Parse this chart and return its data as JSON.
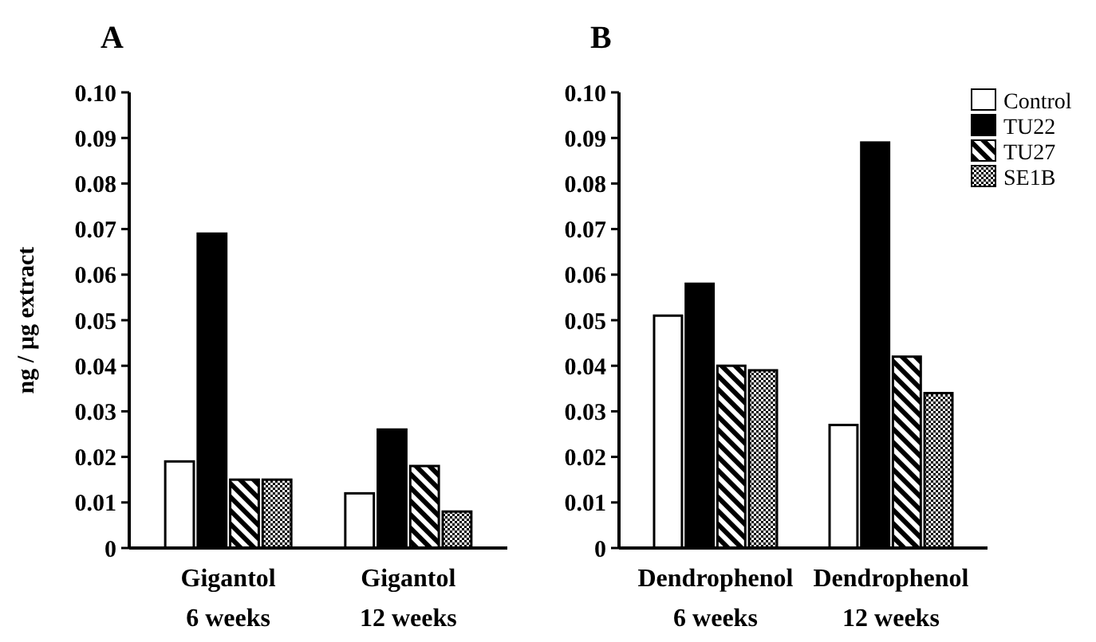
{
  "chart_data": [
    {
      "type": "bar",
      "title": "A",
      "ylabel": "ng / µg extract",
      "categories": [
        "Gigantol\n6 weeks",
        "Gigantol\n12 weeks"
      ],
      "series": [
        {
          "color": "#ffffff",
          "values": [
            0.019,
            0.012
          ]
        },
        {
          "color": "#000000",
          "values": [
            0.069,
            0.026
          ]
        },
        {
          "color": "#000000",
          "values": [
            0.015,
            0.018
          ]
        },
        {
          "color": "#000000",
          "values": [
            0.015,
            0.008
          ]
        }
      ],
      "ylim": [
        0,
        0.1
      ],
      "yticks": [
        0,
        {
          "value": 0.01,
          "label": "0.01"
        },
        {
          "value": 0.02,
          "label": "0.02"
        },
        {
          "value": 0.03,
          "label": "0.03"
        },
        {
          "value": 0.04,
          "label": "0.04"
        },
        {
          "value": 0.05,
          "label": "0.05"
        },
        {
          "value": 0.06,
          "label": "0.06"
        },
        {
          "value": 0.07,
          "label": "0.07"
        },
        {
          "value": 0.08,
          "label": "0.08"
        },
        {
          "value": 0.09,
          "label": "0.09"
        },
        {
          "value": 0.1,
          "label": "0.10"
        }
      ],
      "grid": false,
      "legend": false
    },
    {
      "type": "bar",
      "title": "B",
      "categories": [
        "Dendrophenol\n6 weeks",
        "Dendrophenol\n12 weeks"
      ],
      "series": [
        {
          "name": "Control",
          "color": "#ffffff",
          "values": [
            0.051,
            0.027
          ]
        },
        {
          "name": "TU22",
          "color": "#000000",
          "values": [
            0.058,
            0.089
          ]
        },
        {
          "name": "TU27",
          "color": "#000000",
          "values": [
            0.04,
            0.042
          ]
        },
        {
          "name": "SE1B",
          "color": "#000000",
          "values": [
            0.039,
            0.034
          ]
        }
      ],
      "ylim": [
        0,
        0.1
      ],
      "yticks": [
        0,
        {
          "value": 0.01,
          "label": "0.01"
        },
        {
          "value": 0.02,
          "label": "0.02"
        },
        {
          "value": 0.03,
          "label": "0.03"
        },
        {
          "value": 0.04,
          "label": "0.04"
        },
        {
          "value": 0.05,
          "label": "0.05"
        },
        {
          "value": 0.06,
          "label": "0.06"
        },
        {
          "value": 0.07,
          "label": "0.07"
        },
        {
          "value": 0.08,
          "label": "0.08"
        },
        {
          "value": 0.09,
          "label": "0.09"
        },
        {
          "value": 0.1,
          "label": "0.10"
        }
      ],
      "grid": false,
      "legend": "top right"
    }
  ]
}
